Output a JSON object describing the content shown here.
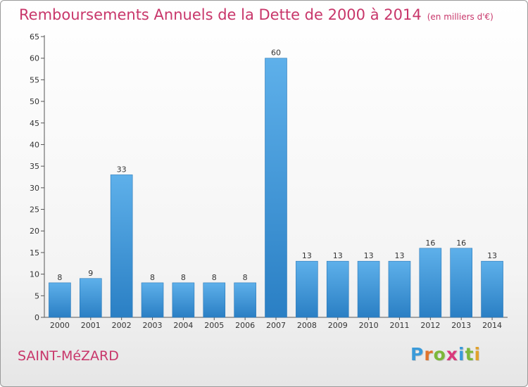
{
  "title": "Remboursements Annuels de la Dette de 2000 à 2014",
  "subtitle": "(en milliers d'€)",
  "place": "SAINT-MéZARD",
  "logo": {
    "letters": [
      "P",
      "r",
      "o",
      "x",
      "i",
      "t",
      "i"
    ],
    "colors": [
      "#3a9ad9",
      "#e0732c",
      "#7cb83a",
      "#d93a7c",
      "#3a9ad9",
      "#7cb83a",
      "#e0a12c"
    ]
  },
  "colors": {
    "bar_light": "#5eb0ea",
    "bar_dark": "#2a7fc4",
    "accent": "#c8366a"
  },
  "chart_data": {
    "type": "bar",
    "title": "Remboursements Annuels de la Dette de 2000 à 2014",
    "subtitle": "(en milliers d'€)",
    "categories": [
      "2000",
      "2001",
      "2002",
      "2003",
      "2004",
      "2005",
      "2006",
      "2007",
      "2008",
      "2009",
      "2010",
      "2011",
      "2012",
      "2013",
      "2014"
    ],
    "values": [
      8,
      9,
      33,
      8,
      8,
      8,
      8,
      60,
      13,
      13,
      13,
      13,
      16,
      16,
      13
    ],
    "yticks": [
      0,
      5,
      10,
      15,
      20,
      25,
      30,
      35,
      40,
      45,
      50,
      55,
      60,
      65
    ],
    "ylim": [
      0,
      65
    ],
    "grid": false,
    "xlabel": "",
    "ylabel": ""
  }
}
